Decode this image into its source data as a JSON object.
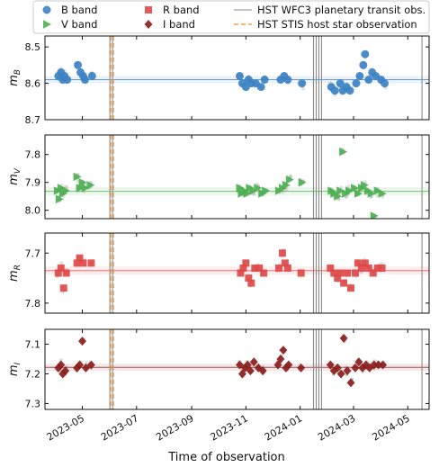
{
  "legend": {
    "entries": [
      {
        "label": "B band",
        "marker": "circle",
        "color": "#3b82c4"
      },
      {
        "label": "V band",
        "marker": "triangle-right",
        "color": "#4caf50"
      },
      {
        "label": "R band",
        "marker": "square",
        "color": "#e04848"
      },
      {
        "label": "I band",
        "marker": "diamond",
        "color": "#8b1c1c"
      },
      {
        "label": "HST WFC3 planetary transit obs.",
        "marker": "line",
        "color": "#a0a0a0"
      },
      {
        "label": "HST STIS host star observation",
        "marker": "dashed-line",
        "color": "#f0a050"
      }
    ]
  },
  "chart_data": {
    "type": "scatter",
    "xlabel": "Time of observation",
    "x_range": [
      "2023-03-20",
      "2024-05-25"
    ],
    "x_ticks": [
      "2023-05",
      "2023-07",
      "2023-09",
      "2023-11",
      "2024-01",
      "2024-03",
      "2024-05"
    ],
    "hst_wfc3_transits": [
      "2023-06-01",
      "2023-06-04",
      "2024-01-16",
      "2024-01-19",
      "2024-01-22",
      "2024-01-25",
      "2024-05-17"
    ],
    "hst_stis_host_star": [
      "2023-06-02",
      "2023-06-05"
    ],
    "panels": [
      {
        "band": "B",
        "ylabel": "m_B",
        "color": "#3b82c4",
        "marker": "circle",
        "ylim": [
          8.7,
          8.47
        ],
        "yticks": [
          "8.5",
          "8.6",
          "8.7"
        ],
        "mean": 8.59,
        "band_sigma": 0.01,
        "points": [
          [
            "2023-04-04",
            8.58
          ],
          [
            "2023-04-07",
            8.57
          ],
          [
            "2023-04-09",
            8.59
          ],
          [
            "2023-04-11",
            8.58
          ],
          [
            "2023-04-14",
            8.59
          ],
          [
            "2023-04-26",
            8.55
          ],
          [
            "2023-04-29",
            8.57
          ],
          [
            "2023-05-02",
            8.58
          ],
          [
            "2023-05-04",
            8.59
          ],
          [
            "2023-05-12",
            8.58
          ],
          [
            "2023-10-25",
            8.58
          ],
          [
            "2023-10-28",
            8.6
          ],
          [
            "2023-11-01",
            8.61
          ],
          [
            "2023-11-04",
            8.59
          ],
          [
            "2023-11-07",
            8.6
          ],
          [
            "2023-11-12",
            8.6
          ],
          [
            "2023-11-18",
            8.61
          ],
          [
            "2023-11-22",
            8.59
          ],
          [
            "2023-12-10",
            8.59
          ],
          [
            "2023-12-14",
            8.58
          ],
          [
            "2023-12-18",
            8.59
          ],
          [
            "2024-01-03",
            8.6
          ],
          [
            "2024-02-05",
            8.61
          ],
          [
            "2024-02-09",
            8.62
          ],
          [
            "2024-02-15",
            8.6
          ],
          [
            "2024-02-18",
            8.62
          ],
          [
            "2024-02-22",
            8.61
          ],
          [
            "2024-02-26",
            8.62
          ],
          [
            "2024-03-04",
            8.6
          ],
          [
            "2024-03-08",
            8.58
          ],
          [
            "2024-03-12",
            8.55
          ],
          [
            "2024-03-14",
            8.52
          ],
          [
            "2024-03-18",
            8.59
          ],
          [
            "2024-03-22",
            8.57
          ],
          [
            "2024-03-26",
            8.58
          ],
          [
            "2024-04-01",
            8.59
          ],
          [
            "2024-04-05",
            8.6
          ]
        ]
      },
      {
        "band": "V",
        "ylabel": "m_V",
        "color": "#4caf50",
        "marker": "triangle-right",
        "ylim": [
          8.03,
          7.73
        ],
        "yticks": [
          "7.8",
          "7.9",
          "8.0"
        ],
        "mean": 7.932,
        "band_sigma": 0.015,
        "points": [
          [
            "2023-04-03",
            7.93
          ],
          [
            "2023-04-05",
            7.96
          ],
          [
            "2023-04-07",
            7.92
          ],
          [
            "2023-04-09",
            7.94
          ],
          [
            "2023-04-12",
            7.93
          ],
          [
            "2023-04-25",
            7.88
          ],
          [
            "2023-04-28",
            7.92
          ],
          [
            "2023-05-01",
            7.9
          ],
          [
            "2023-05-04",
            7.92
          ],
          [
            "2023-05-10",
            7.91
          ],
          [
            "2023-10-25",
            7.92
          ],
          [
            "2023-10-27",
            7.94
          ],
          [
            "2023-10-30",
            7.93
          ],
          [
            "2023-11-02",
            7.94
          ],
          [
            "2023-11-05",
            7.92
          ],
          [
            "2023-11-09",
            7.93
          ],
          [
            "2023-11-14",
            7.92
          ],
          [
            "2023-11-19",
            7.94
          ],
          [
            "2023-11-23",
            7.93
          ],
          [
            "2023-12-08",
            7.93
          ],
          [
            "2023-12-12",
            7.92
          ],
          [
            "2023-12-16",
            7.91
          ],
          [
            "2023-12-20",
            7.89
          ],
          [
            "2024-01-03",
            7.9
          ],
          [
            "2024-02-05",
            7.93
          ],
          [
            "2024-02-08",
            7.94
          ],
          [
            "2024-02-12",
            7.95
          ],
          [
            "2024-02-15",
            7.93
          ],
          [
            "2024-02-18",
            7.79
          ],
          [
            "2024-02-21",
            7.94
          ],
          [
            "2024-02-25",
            7.93
          ],
          [
            "2024-03-02",
            7.92
          ],
          [
            "2024-03-06",
            7.94
          ],
          [
            "2024-03-10",
            7.92
          ],
          [
            "2024-03-13",
            7.91
          ],
          [
            "2024-03-17",
            7.93
          ],
          [
            "2024-03-21",
            7.94
          ],
          [
            "2024-03-24",
            8.02
          ],
          [
            "2024-03-28",
            7.93
          ],
          [
            "2024-04-02",
            7.94
          ]
        ]
      },
      {
        "band": "R",
        "ylabel": "m_R",
        "color": "#e04848",
        "marker": "square",
        "ylim": [
          7.82,
          7.66
        ],
        "yticks": [
          "7.7",
          "7.8"
        ],
        "mean": 7.735,
        "band_sigma": 0.008,
        "points": [
          [
            "2023-04-04",
            7.74
          ],
          [
            "2023-04-07",
            7.73
          ],
          [
            "2023-04-10",
            7.77
          ],
          [
            "2023-04-13",
            7.74
          ],
          [
            "2023-04-25",
            7.72
          ],
          [
            "2023-04-28",
            7.71
          ],
          [
            "2023-05-02",
            7.72
          ],
          [
            "2023-05-11",
            7.72
          ],
          [
            "2023-10-26",
            7.74
          ],
          [
            "2023-10-29",
            7.73
          ],
          [
            "2023-11-01",
            7.72
          ],
          [
            "2023-11-04",
            7.75
          ],
          [
            "2023-11-07",
            7.76
          ],
          [
            "2023-11-11",
            7.73
          ],
          [
            "2023-11-16",
            7.73
          ],
          [
            "2023-11-21",
            7.74
          ],
          [
            "2023-12-08",
            7.73
          ],
          [
            "2023-12-12",
            7.7
          ],
          [
            "2023-12-15",
            7.72
          ],
          [
            "2023-12-18",
            7.73
          ],
          [
            "2024-01-02",
            7.74
          ],
          [
            "2024-02-04",
            7.73
          ],
          [
            "2024-02-08",
            7.74
          ],
          [
            "2024-02-12",
            7.75
          ],
          [
            "2024-02-15",
            7.74
          ],
          [
            "2024-02-19",
            7.76
          ],
          [
            "2024-02-23",
            7.74
          ],
          [
            "2024-02-27",
            7.77
          ],
          [
            "2024-03-03",
            7.74
          ],
          [
            "2024-03-06",
            7.72
          ],
          [
            "2024-03-10",
            7.73
          ],
          [
            "2024-03-14",
            7.72
          ],
          [
            "2024-03-18",
            7.73
          ],
          [
            "2024-03-23",
            7.74
          ],
          [
            "2024-03-28",
            7.73
          ],
          [
            "2024-04-02",
            7.73
          ]
        ]
      },
      {
        "band": "I",
        "ylabel": "m_I",
        "color": "#8b1c1c",
        "marker": "diamond",
        "ylim": [
          7.32,
          7.05
        ],
        "yticks": [
          "7.1",
          "7.2",
          "7.3"
        ],
        "mean": 7.178,
        "band_sigma": 0.012,
        "points": [
          [
            "2023-04-04",
            7.18
          ],
          [
            "2023-04-07",
            7.17
          ],
          [
            "2023-04-09",
            7.2
          ],
          [
            "2023-04-12",
            7.19
          ],
          [
            "2023-04-25",
            7.18
          ],
          [
            "2023-04-28",
            7.17
          ],
          [
            "2023-05-01",
            7.09
          ],
          [
            "2023-05-05",
            7.18
          ],
          [
            "2023-05-11",
            7.17
          ],
          [
            "2023-10-25",
            7.17
          ],
          [
            "2023-10-28",
            7.2
          ],
          [
            "2023-10-31",
            7.18
          ],
          [
            "2023-11-03",
            7.17
          ],
          [
            "2023-11-06",
            7.19
          ],
          [
            "2023-11-10",
            7.16
          ],
          [
            "2023-11-15",
            7.18
          ],
          [
            "2023-11-20",
            7.19
          ],
          [
            "2023-12-07",
            7.17
          ],
          [
            "2023-12-10",
            7.15
          ],
          [
            "2023-12-13",
            7.12
          ],
          [
            "2023-12-16",
            7.18
          ],
          [
            "2023-12-19",
            7.17
          ],
          [
            "2024-01-02",
            7.18
          ],
          [
            "2024-02-04",
            7.17
          ],
          [
            "2024-02-08",
            7.19
          ],
          [
            "2024-02-12",
            7.18
          ],
          [
            "2024-02-16",
            7.2
          ],
          [
            "2024-02-19",
            7.08
          ],
          [
            "2024-02-23",
            7.19
          ],
          [
            "2024-02-27",
            7.23
          ],
          [
            "2024-03-03",
            7.18
          ],
          [
            "2024-03-07",
            7.16
          ],
          [
            "2024-03-11",
            7.18
          ],
          [
            "2024-03-15",
            7.17
          ],
          [
            "2024-03-19",
            7.18
          ],
          [
            "2024-03-24",
            7.17
          ],
          [
            "2024-03-29",
            7.17
          ],
          [
            "2024-04-03",
            7.17
          ]
        ]
      }
    ]
  }
}
